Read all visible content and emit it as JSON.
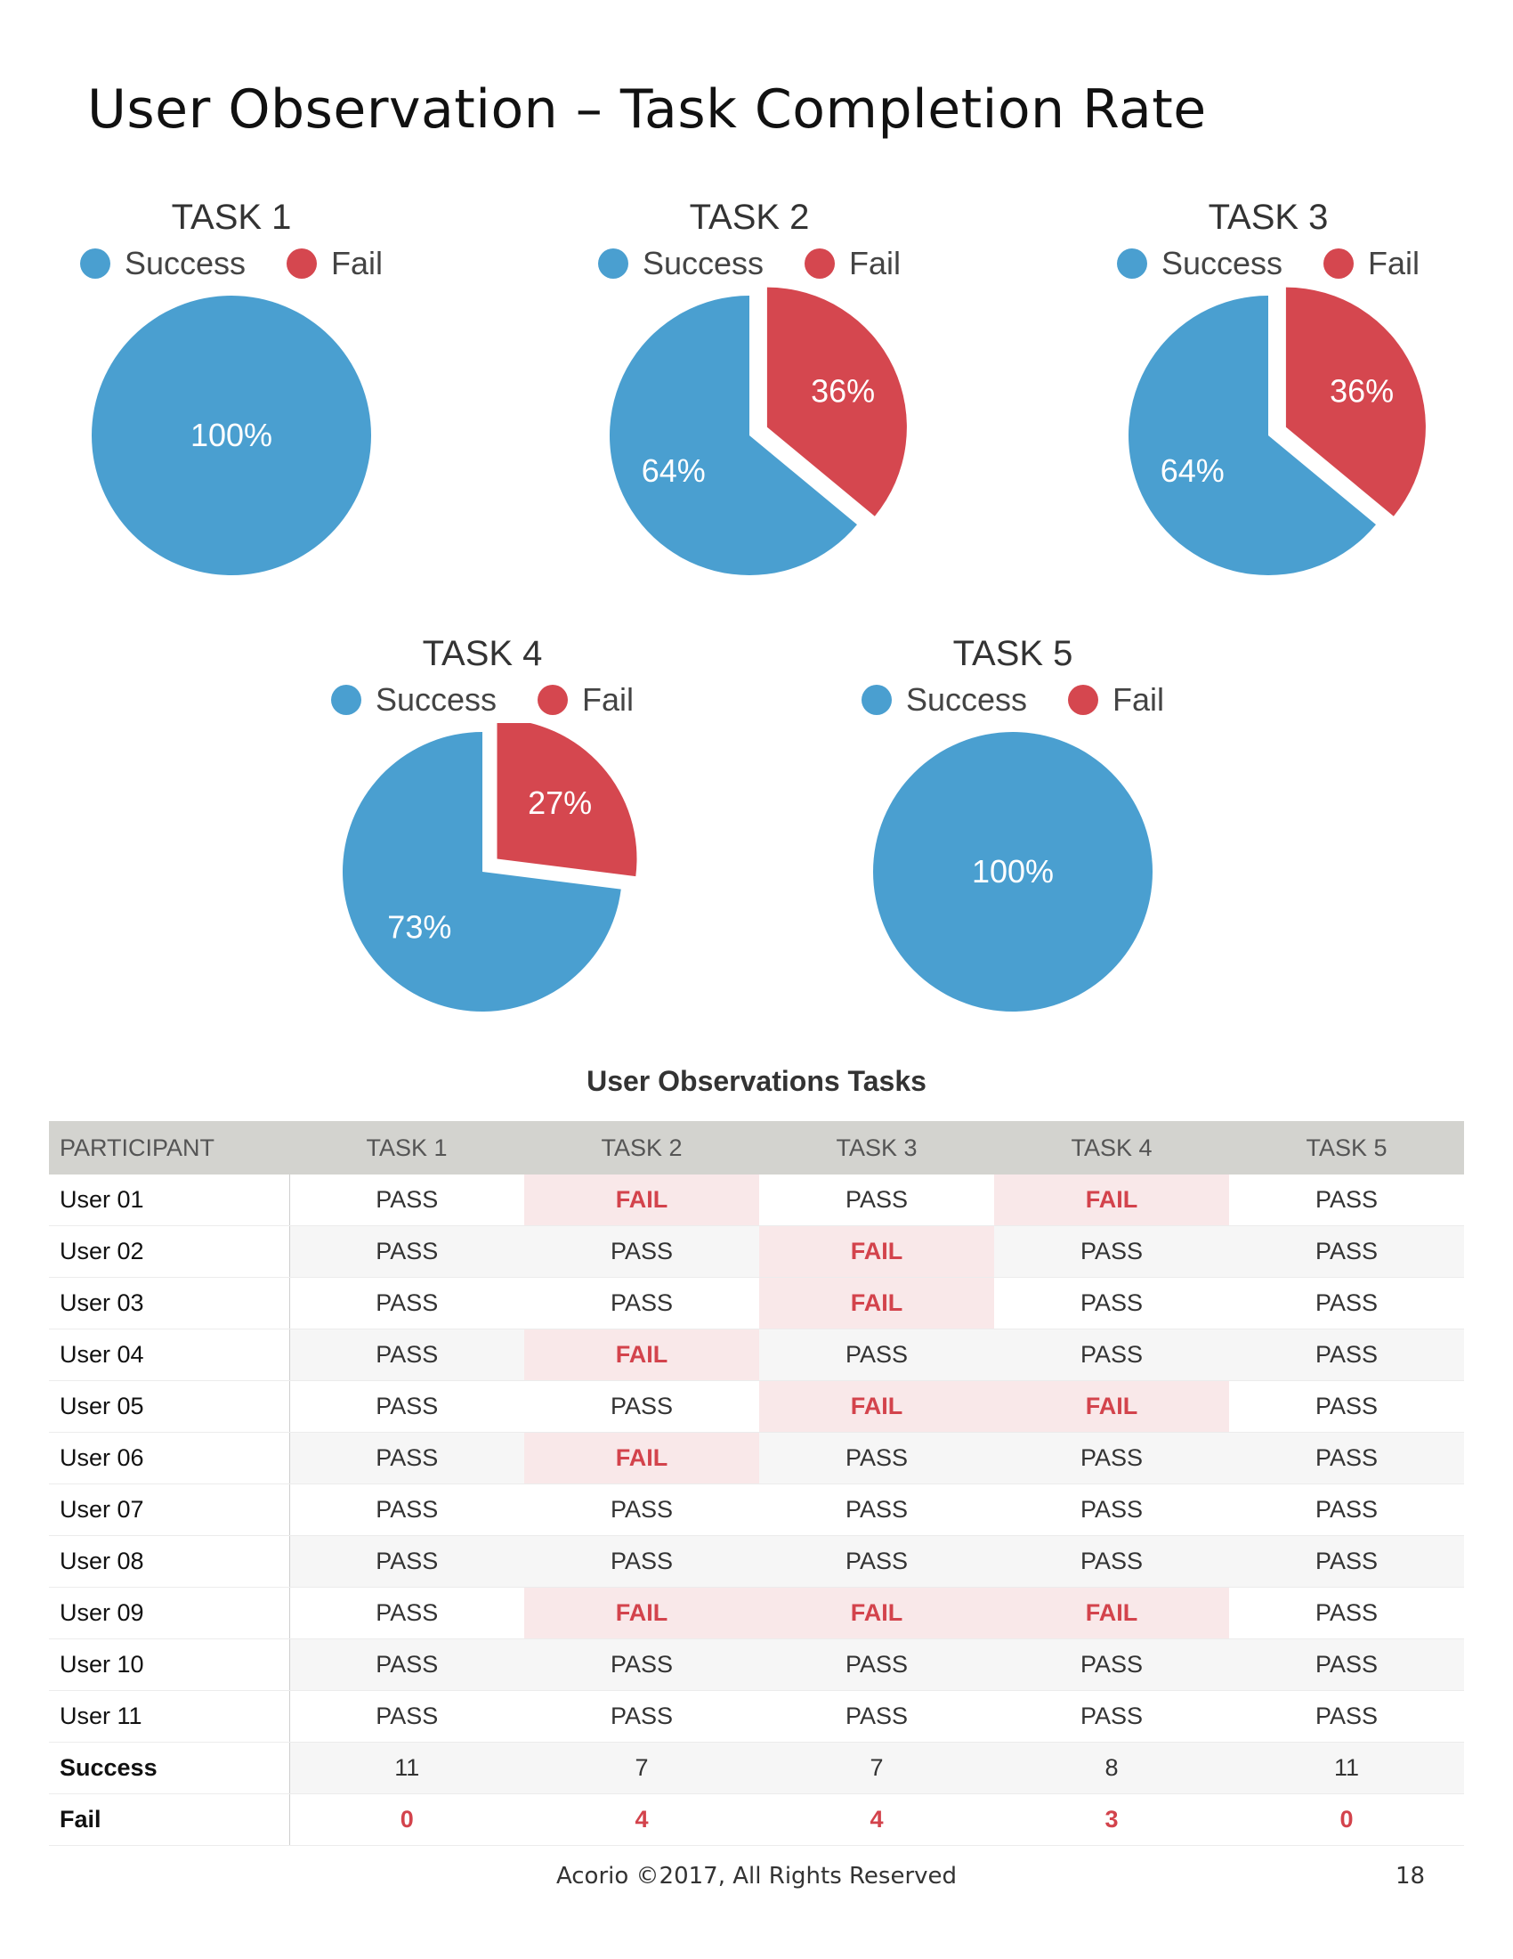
{
  "title": "User Observation – Task Completion Rate",
  "colors": {
    "success": "#4a9fd0",
    "fail": "#d5474f"
  },
  "legend": {
    "success": "Success",
    "fail": "Fail"
  },
  "chart_data": [
    {
      "type": "pie",
      "title": "TASK 1",
      "series": [
        {
          "name": "Success",
          "value": 100,
          "label": "100%"
        },
        {
          "name": "Fail",
          "value": 0,
          "label": ""
        }
      ]
    },
    {
      "type": "pie",
      "title": "TASK 2",
      "series": [
        {
          "name": "Success",
          "value": 64,
          "label": "64%"
        },
        {
          "name": "Fail",
          "value": 36,
          "label": "36%"
        }
      ]
    },
    {
      "type": "pie",
      "title": "TASK 3",
      "series": [
        {
          "name": "Success",
          "value": 64,
          "label": "64%"
        },
        {
          "name": "Fail",
          "value": 36,
          "label": "36%"
        }
      ]
    },
    {
      "type": "pie",
      "title": "TASK 4",
      "series": [
        {
          "name": "Success",
          "value": 73,
          "label": "73%"
        },
        {
          "name": "Fail",
          "value": 27,
          "label": "27%"
        }
      ]
    },
    {
      "type": "pie",
      "title": "TASK 5",
      "series": [
        {
          "name": "Success",
          "value": 100,
          "label": "100%"
        },
        {
          "name": "Fail",
          "value": 0,
          "label": ""
        }
      ]
    },
    {
      "type": "table",
      "title": "User Observations Tasks",
      "headers": [
        "PARTICIPANT",
        "TASK 1",
        "TASK 2",
        "TASK 3",
        "TASK 4",
        "TASK 5"
      ],
      "rows": [
        [
          "User 01",
          "PASS",
          "FAIL",
          "PASS",
          "FAIL",
          "PASS"
        ],
        [
          "User 02",
          "PASS",
          "PASS",
          "FAIL",
          "PASS",
          "PASS"
        ],
        [
          "User 03",
          "PASS",
          "PASS",
          "FAIL",
          "PASS",
          "PASS"
        ],
        [
          "User 04",
          "PASS",
          "FAIL",
          "PASS",
          "PASS",
          "PASS"
        ],
        [
          "User 05",
          "PASS",
          "PASS",
          "FAIL",
          "FAIL",
          "PASS"
        ],
        [
          "User 06",
          "PASS",
          "FAIL",
          "PASS",
          "PASS",
          "PASS"
        ],
        [
          "User 07",
          "PASS",
          "PASS",
          "PASS",
          "PASS",
          "PASS"
        ],
        [
          "User 08",
          "PASS",
          "PASS",
          "PASS",
          "PASS",
          "PASS"
        ],
        [
          "User 09",
          "PASS",
          "FAIL",
          "FAIL",
          "FAIL",
          "PASS"
        ],
        [
          "User 10",
          "PASS",
          "PASS",
          "PASS",
          "PASS",
          "PASS"
        ],
        [
          "User 11",
          "PASS",
          "PASS",
          "PASS",
          "PASS",
          "PASS"
        ],
        [
          "Success",
          "11",
          "7",
          "7",
          "8",
          "11"
        ],
        [
          "Fail",
          "0",
          "4",
          "4",
          "3",
          "0"
        ]
      ]
    }
  ],
  "footer": {
    "text": "Acorio ©2017, All Rights Reserved",
    "page": "18"
  }
}
